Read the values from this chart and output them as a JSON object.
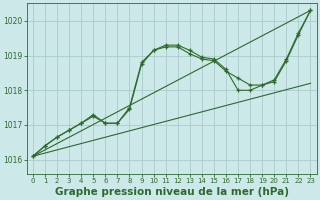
{
  "bg_color": "#cce8e8",
  "grid_color": "#aacccc",
  "line_color": "#2d6a2d",
  "xlabel": "Graphe pression niveau de la mer (hPa)",
  "xlabel_fontsize": 7.5,
  "ylim": [
    1015.6,
    1020.5
  ],
  "xlim": [
    -0.5,
    23.5
  ],
  "yticks": [
    1016,
    1017,
    1018,
    1019,
    1020
  ],
  "xticks": [
    0,
    1,
    2,
    3,
    4,
    5,
    6,
    7,
    8,
    9,
    10,
    11,
    12,
    13,
    14,
    15,
    16,
    17,
    18,
    19,
    20,
    21,
    22,
    23
  ],
  "series1_x": [
    0,
    23
  ],
  "series1_y": [
    1016.1,
    1020.3
  ],
  "series2_x": [
    0,
    23
  ],
  "series2_y": [
    1016.1,
    1018.2
  ],
  "series3_x": [
    0,
    1,
    2,
    3,
    4,
    5,
    6,
    7,
    8,
    9,
    10,
    11,
    12,
    13,
    14,
    15,
    16,
    17,
    18,
    19,
    20,
    21,
    22,
    23
  ],
  "series3_y": [
    1016.1,
    1016.4,
    1016.65,
    1016.85,
    1017.05,
    1017.25,
    1017.05,
    1017.05,
    1017.5,
    1018.8,
    1019.15,
    1019.25,
    1019.25,
    1019.05,
    1018.9,
    1018.85,
    1018.55,
    1018.35,
    1018.15,
    1018.15,
    1018.25,
    1018.85,
    1019.6,
    1020.3
  ],
  "series4_x": [
    0,
    1,
    2,
    3,
    4,
    5,
    6,
    7,
    8,
    9,
    10,
    11,
    12,
    13,
    14,
    15,
    16,
    17,
    18,
    19,
    20,
    21,
    22,
    23
  ],
  "series4_y": [
    1016.1,
    1016.4,
    1016.65,
    1016.85,
    1017.05,
    1017.3,
    1017.05,
    1017.05,
    1017.45,
    1018.75,
    1019.15,
    1019.3,
    1019.3,
    1019.15,
    1018.95,
    1018.9,
    1018.6,
    1018.0,
    1018.0,
    1018.15,
    1018.3,
    1018.9,
    1019.65,
    1020.3
  ]
}
